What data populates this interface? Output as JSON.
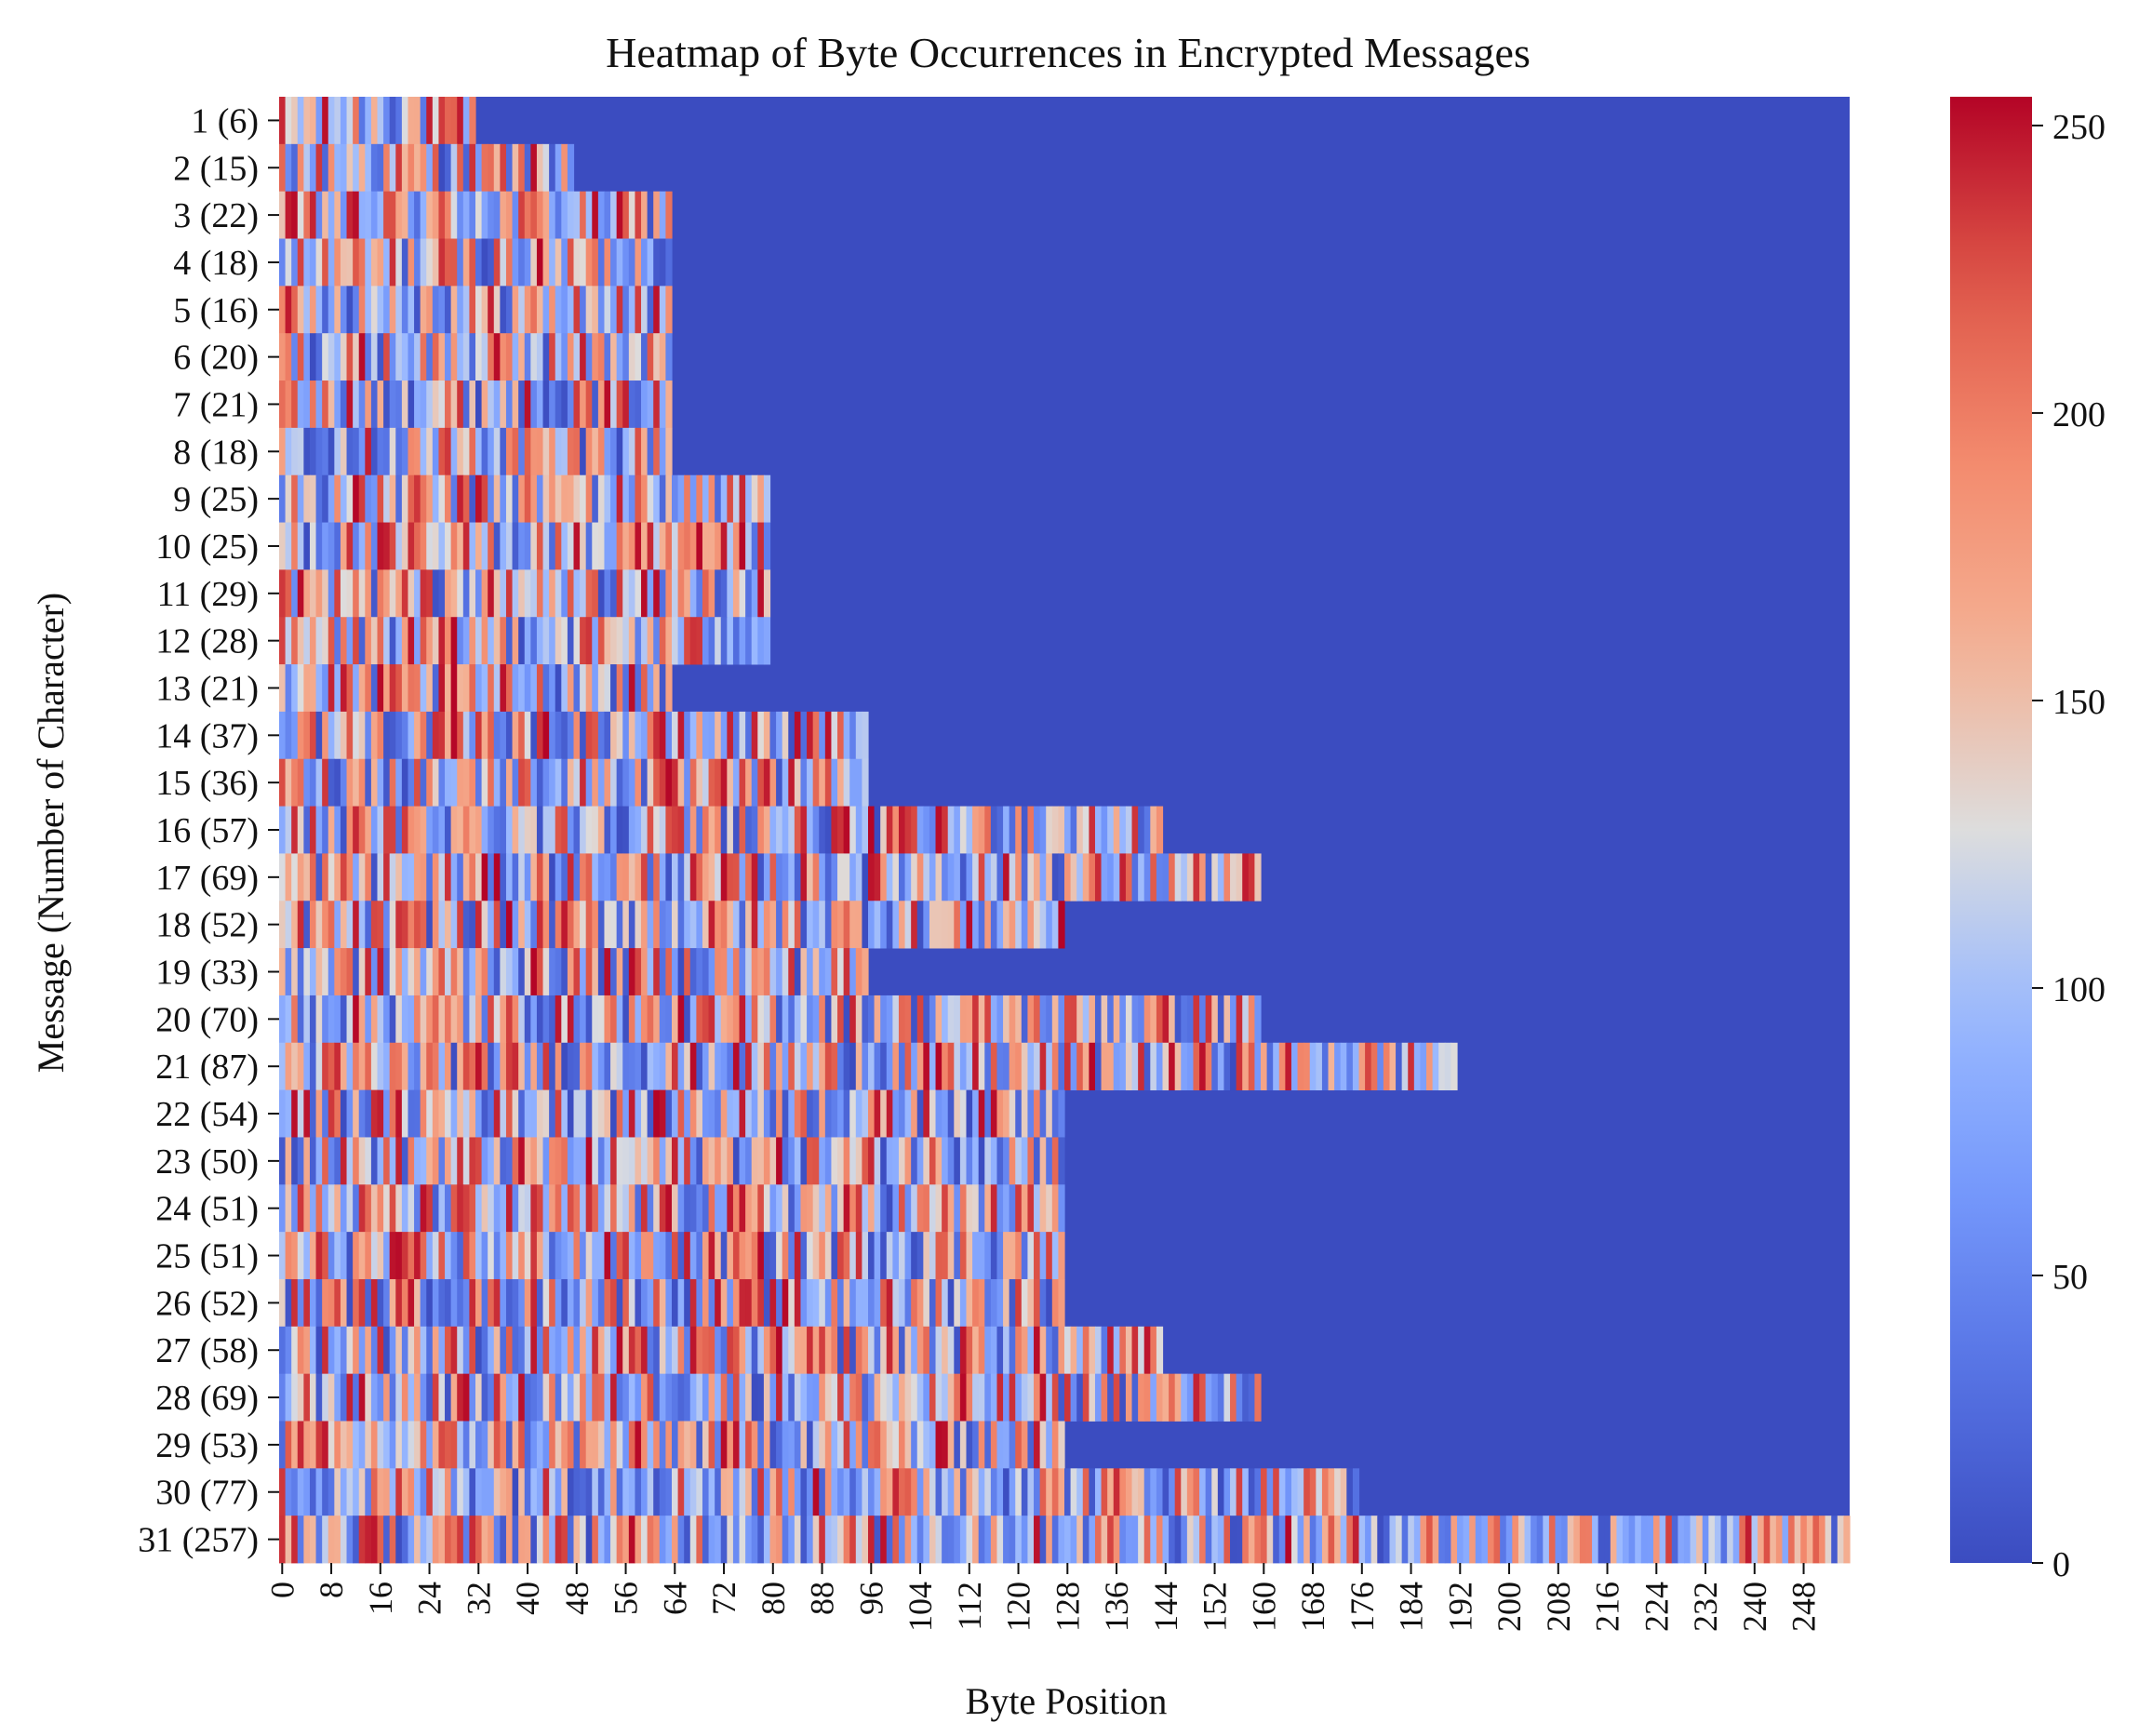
{
  "chart_data": {
    "type": "heatmap",
    "title": "Heatmap of Byte Occurrences in Encrypted Messages",
    "xlabel": "Byte Position",
    "ylabel": "Message (Number of Character)",
    "x_range": [
      0,
      255
    ],
    "x_ticks": [
      "0",
      "8",
      "16",
      "24",
      "32",
      "40",
      "48",
      "56",
      "64",
      "72",
      "80",
      "88",
      "96",
      "104",
      "112",
      "120",
      "128",
      "136",
      "144",
      "152",
      "160",
      "168",
      "176",
      "184",
      "192",
      "200",
      "208",
      "216",
      "224",
      "232",
      "240",
      "248"
    ],
    "rows": [
      {
        "label": "1 (6)",
        "filled_length": 32
      },
      {
        "label": "2 (15)",
        "filled_length": 48
      },
      {
        "label": "3 (22)",
        "filled_length": 64
      },
      {
        "label": "4 (18)",
        "filled_length": 64
      },
      {
        "label": "5 (16)",
        "filled_length": 64
      },
      {
        "label": "6 (20)",
        "filled_length": 64
      },
      {
        "label": "7 (21)",
        "filled_length": 64
      },
      {
        "label": "8 (18)",
        "filled_length": 64
      },
      {
        "label": "9 (25)",
        "filled_length": 80
      },
      {
        "label": "10 (25)",
        "filled_length": 80
      },
      {
        "label": "11 (29)",
        "filled_length": 80
      },
      {
        "label": "12 (28)",
        "filled_length": 80
      },
      {
        "label": "13 (21)",
        "filled_length": 64
      },
      {
        "label": "14 (37)",
        "filled_length": 96
      },
      {
        "label": "15 (36)",
        "filled_length": 96
      },
      {
        "label": "16 (57)",
        "filled_length": 144
      },
      {
        "label": "17 (69)",
        "filled_length": 160
      },
      {
        "label": "18 (52)",
        "filled_length": 128
      },
      {
        "label": "19 (33)",
        "filled_length": 96
      },
      {
        "label": "20 (70)",
        "filled_length": 160
      },
      {
        "label": "21 (87)",
        "filled_length": 192
      },
      {
        "label": "22 (54)",
        "filled_length": 128
      },
      {
        "label": "23 (50)",
        "filled_length": 128
      },
      {
        "label": "24 (51)",
        "filled_length": 128
      },
      {
        "label": "25 (51)",
        "filled_length": 128
      },
      {
        "label": "26 (52)",
        "filled_length": 128
      },
      {
        "label": "27 (58)",
        "filled_length": 144
      },
      {
        "label": "28 (69)",
        "filled_length": 160
      },
      {
        "label": "29 (53)",
        "filled_length": 128
      },
      {
        "label": "30 (77)",
        "filled_length": 176
      },
      {
        "label": "31 (257)",
        "filled_length": 256
      }
    ],
    "padding_value": 0,
    "colorbar": {
      "colormap": "coolwarm",
      "min": 0,
      "max": 255,
      "ticks": [
        0,
        50,
        100,
        150,
        200,
        250
      ]
    },
    "colors": {
      "low": "#3b4cc0",
      "mid": "#dddddd",
      "high": "#b40426"
    }
  }
}
